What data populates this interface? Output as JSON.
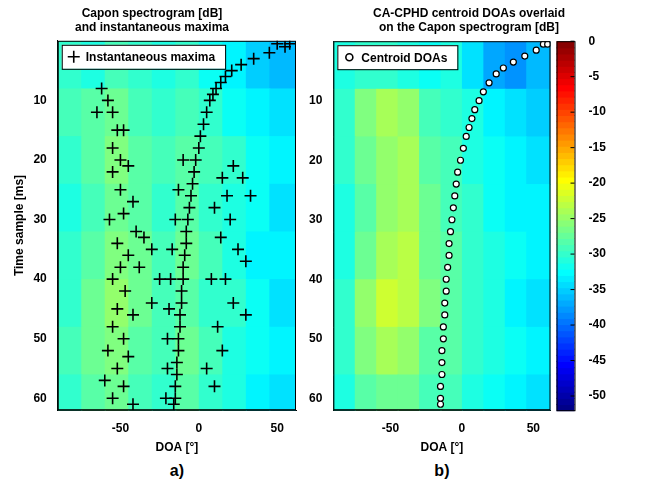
{
  "chart_data": [
    {
      "type": "scatter",
      "panel_label": "a)",
      "title": [
        "Capon spectrogram [dB]",
        "and instantaneous maxima"
      ],
      "xlabel": "DOA [°]",
      "ylabel": "Time sample [ms]",
      "xlim": [
        -90,
        62
      ],
      "xticks": [
        -50,
        0,
        50
      ],
      "ylim": [
        0,
        62
      ],
      "yticks": [
        10,
        20,
        30,
        40,
        50,
        60
      ],
      "grid": false,
      "legend": "upper left",
      "cell_x": [
        -90,
        -75,
        -60,
        -45,
        -30,
        -15,
        0,
        15,
        30,
        45,
        62
      ],
      "cell_y": [
        0,
        8,
        16,
        24,
        32,
        40,
        48,
        56,
        62
      ],
      "cells": [
        [
          -30,
          -31,
          -29,
          -30,
          -31,
          -30,
          -32,
          -33,
          -35,
          -36
        ],
        [
          -29,
          -28,
          -27,
          -29,
          -30,
          -29,
          -30,
          -32,
          -33,
          -34
        ],
        [
          -30,
          -28,
          -26,
          -28,
          -29,
          -28,
          -29,
          -30,
          -32,
          -33
        ],
        [
          -31,
          -29,
          -27,
          -28,
          -30,
          -28,
          -30,
          -31,
          -32,
          -34
        ],
        [
          -30,
          -28,
          -26,
          -27,
          -29,
          -27,
          -29,
          -31,
          -33,
          -33
        ],
        [
          -30,
          -27,
          -25,
          -27,
          -29,
          -28,
          -30,
          -30,
          -32,
          -34
        ],
        [
          -29,
          -27,
          -26,
          -28,
          -29,
          -27,
          -29,
          -31,
          -32,
          -33
        ],
        [
          -30,
          -28,
          -27,
          -29,
          -30,
          -28,
          -30,
          -31,
          -33,
          -34
        ]
      ],
      "series": [
        {
          "name": "Instantaneous maxima",
          "color": "#000000",
          "marker": "cross",
          "x": [
            55,
            45,
            35,
            27,
            21,
            17,
            14,
            11,
            9,
            7,
            5,
            3,
            1,
            0,
            -2,
            -3,
            -4,
            -5,
            -6,
            -7,
            -8,
            -8,
            -9,
            -10,
            -10,
            -11,
            -11,
            -12,
            -12,
            -13,
            -13,
            -14,
            -14,
            -15,
            -15,
            -16,
            -10,
            -13,
            -15,
            -17,
            -18,
            -19,
            -20,
            -20,
            -21,
            50,
            58,
            -62,
            -58,
            -65,
            -55,
            -52,
            -48,
            -55,
            -50,
            -45,
            -55,
            -50,
            -42,
            -48,
            -57,
            -40,
            -52,
            -45,
            -50,
            -38,
            -55,
            -47,
            -52,
            -42,
            -55,
            -48,
            -58,
            -45,
            -52,
            -60,
            -48,
            -55,
            -42,
            -35,
            -30,
            -25,
            -30,
            22,
            15,
            28,
            18,
            33,
            10,
            20,
            14,
            25,
            30,
            17,
            22,
            30,
            12,
            15,
            10,
            5,
            8
          ],
          "y": [
            1,
            2,
            3,
            4,
            5,
            6,
            7,
            8,
            9,
            10,
            12,
            14,
            16,
            18,
            20,
            22,
            24,
            26,
            28,
            30,
            32,
            34,
            36,
            38,
            40,
            42,
            44,
            46,
            48,
            50,
            52,
            54,
            56,
            58,
            60,
            61,
            20,
            25,
            30,
            35,
            40,
            45,
            50,
            55,
            60,
            0.5,
            0.5,
            8,
            10,
            12,
            12,
            15,
            15,
            18,
            20,
            21,
            22,
            25,
            27,
            29,
            30,
            32,
            34,
            36,
            38,
            38,
            40,
            42,
            45,
            46,
            48,
            50,
            52,
            53,
            55,
            57,
            58,
            60,
            61,
            33,
            35,
            40,
            44,
            21,
            23,
            23,
            26,
            26,
            28,
            30,
            33,
            35,
            37,
            40,
            44,
            46,
            48,
            52,
            58,
            55,
            40
          ]
        }
      ]
    },
    {
      "type": "scatter",
      "panel_label": "b)",
      "title": [
        "CA-CPHD centroid DOAs overlaid",
        "on the Capon spectrogram [dB]"
      ],
      "xlabel": "DOA [°]",
      "xlim": [
        -90,
        62
      ],
      "xticks": [
        -50,
        0,
        50
      ],
      "ylim": [
        0,
        62
      ],
      "yticks": [
        10,
        20,
        30,
        40,
        50,
        60
      ],
      "grid": false,
      "legend": "upper left",
      "cell_x": [
        -90,
        -75,
        -60,
        -45,
        -30,
        -15,
        0,
        15,
        30,
        45,
        62
      ],
      "cell_y": [
        0,
        8,
        16,
        24,
        32,
        40,
        48,
        56,
        62
      ],
      "cells": [
        [
          -31,
          -30,
          -30,
          -31,
          -32,
          -31,
          -34,
          -37,
          -38,
          -36
        ],
        [
          -30,
          -26,
          -24,
          -25,
          -29,
          -30,
          -31,
          -33,
          -34,
          -35
        ],
        [
          -30,
          -27,
          -25,
          -24,
          -28,
          -29,
          -31,
          -32,
          -33,
          -34
        ],
        [
          -31,
          -28,
          -25,
          -24,
          -27,
          -29,
          -30,
          -32,
          -33,
          -33
        ],
        [
          -31,
          -27,
          -24,
          -23,
          -27,
          -28,
          -30,
          -31,
          -32,
          -33
        ],
        [
          -30,
          -25,
          -22,
          -23,
          -26,
          -28,
          -30,
          -31,
          -33,
          -34
        ],
        [
          -30,
          -26,
          -24,
          -25,
          -28,
          -28,
          -30,
          -31,
          -32,
          -33
        ],
        [
          -31,
          -28,
          -27,
          -27,
          -29,
          -29,
          -31,
          -32,
          -33,
          -34
        ]
      ],
      "colorbar_range": [
        -52,
        0
      ],
      "colorbar_ticks": [
        0,
        -5,
        -10,
        -15,
        -20,
        -25,
        -30,
        -35,
        -40,
        -45,
        -50
      ],
      "series": [
        {
          "name": "Centroid DOAs",
          "color": "#000000",
          "marker": "circle",
          "x": [
            57,
            52,
            44,
            36,
            29,
            24,
            19,
            15,
            12,
            9,
            7,
            5,
            3,
            1,
            -1,
            -3,
            -4,
            -5,
            -6,
            -7,
            -8,
            -9,
            -9,
            -10,
            -11,
            -11,
            -12,
            -12,
            -13,
            -13,
            -14,
            -14,
            -14,
            -15,
            -15,
            -15,
            60
          ],
          "y": [
            0.5,
            1.5,
            2.5,
            3.5,
            4.5,
            5.5,
            7,
            8.5,
            10,
            11.5,
            13,
            14.5,
            16,
            18,
            20,
            22,
            24,
            26,
            28,
            30,
            32,
            34,
            36,
            38,
            40,
            42,
            44,
            46,
            48,
            50,
            52,
            54,
            56,
            58,
            60,
            61,
            0.5
          ]
        }
      ]
    }
  ]
}
